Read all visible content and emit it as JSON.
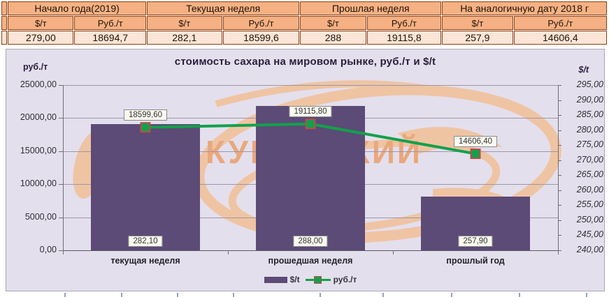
{
  "colors": {
    "table_border": "#8c3d0f",
    "table_header_bg": "#f5b183",
    "table_value_bg": "#fbe5d6",
    "chart_bg": "#e4dfec",
    "grid": "#9b98a8",
    "axis": "#6e6e78",
    "title": "#29203f",
    "bar": "#5c4a77",
    "line": "#12a14b",
    "marker_border": "#be4b48",
    "watermark_stroke": "#efc4a3",
    "watermark_text": "#e9a87d"
  },
  "table": {
    "usd_unit": "$/т",
    "rub_unit": "Руб./т",
    "col_groups": [
      {
        "label": "Начало года(2019)",
        "usd": "279,00",
        "rub": "18694,7"
      },
      {
        "label": "Текущая неделя",
        "usd": "282,1",
        "rub": "18599,6"
      },
      {
        "label": "Прошлая неделя",
        "usd": "288",
        "rub": "19115,8"
      },
      {
        "label": "На аналогичную дату 2018 г",
        "usd": "257,9",
        "rub": "14606,4"
      }
    ]
  },
  "chart_data": {
    "type": "bar",
    "title": "стоимость сахара на мировом рынке, руб./т и $/t",
    "categories": [
      "текущая неделя",
      "прошедшая неделя",
      "прошлый год"
    ],
    "series": [
      {
        "name": "$/t",
        "kind": "bar",
        "axis": "right",
        "values": [
          282.1,
          288,
          257.9
        ],
        "data_labels": [
          "282,10",
          "288,00",
          "257,90"
        ]
      },
      {
        "name": "руб./т",
        "kind": "line",
        "axis": "left",
        "values": [
          18599.6,
          19115.8,
          14606.4
        ],
        "data_labels": [
          "18599,60",
          "19115,80",
          "14606,40"
        ]
      }
    ],
    "left_axis": {
      "title": "руб./т",
      "min": 0,
      "max": 25000,
      "step": 5000,
      "ticks": [
        {
          "v": 25000,
          "label": "25000,00"
        },
        {
          "v": 20000,
          "label": "20000,00"
        },
        {
          "v": 15000,
          "label": "15000,00"
        },
        {
          "v": 10000,
          "label": "10000,00"
        },
        {
          "v": 5000,
          "label": "5000,00"
        },
        {
          "v": 0,
          "label": "0,00"
        }
      ]
    },
    "right_axis": {
      "title": "$/t",
      "min": 240,
      "max": 295,
      "step": 5,
      "ticks": [
        {
          "v": 295,
          "label": "295,00"
        },
        {
          "v": 290,
          "label": "290,00"
        },
        {
          "v": 285,
          "label": "285,00"
        },
        {
          "v": 280,
          "label": "280,00"
        },
        {
          "v": 275,
          "label": "275,00"
        },
        {
          "v": 270,
          "label": "270,00"
        },
        {
          "v": 265,
          "label": "265,00"
        },
        {
          "v": 260,
          "label": "260,00"
        },
        {
          "v": 255,
          "label": "255,00"
        },
        {
          "v": 250,
          "label": "250,00"
        },
        {
          "v": 245,
          "label": "245,00"
        },
        {
          "v": 240,
          "label": "240,00"
        }
      ]
    },
    "legend_position": "bottom",
    "grid": true,
    "watermark_text": "КУБАНСКИЙ"
  }
}
